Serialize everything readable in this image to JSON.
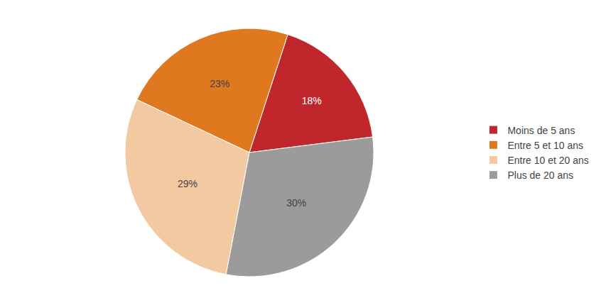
{
  "chart_data": {
    "type": "pie",
    "categories": [
      "Moins de 5 ans",
      "Entre 5 et 10 ans",
      "Entre 10 et 20 ans",
      "Plus de 20 ans"
    ],
    "values": [
      18,
      23,
      29,
      30
    ],
    "value_labels": [
      "18%",
      "23%",
      "29%",
      "30%"
    ],
    "colors": [
      "#C0272D",
      "#E07820",
      "#F2C9A0",
      "#9B9B9B"
    ],
    "data_labels": true,
    "legend": "right"
  }
}
